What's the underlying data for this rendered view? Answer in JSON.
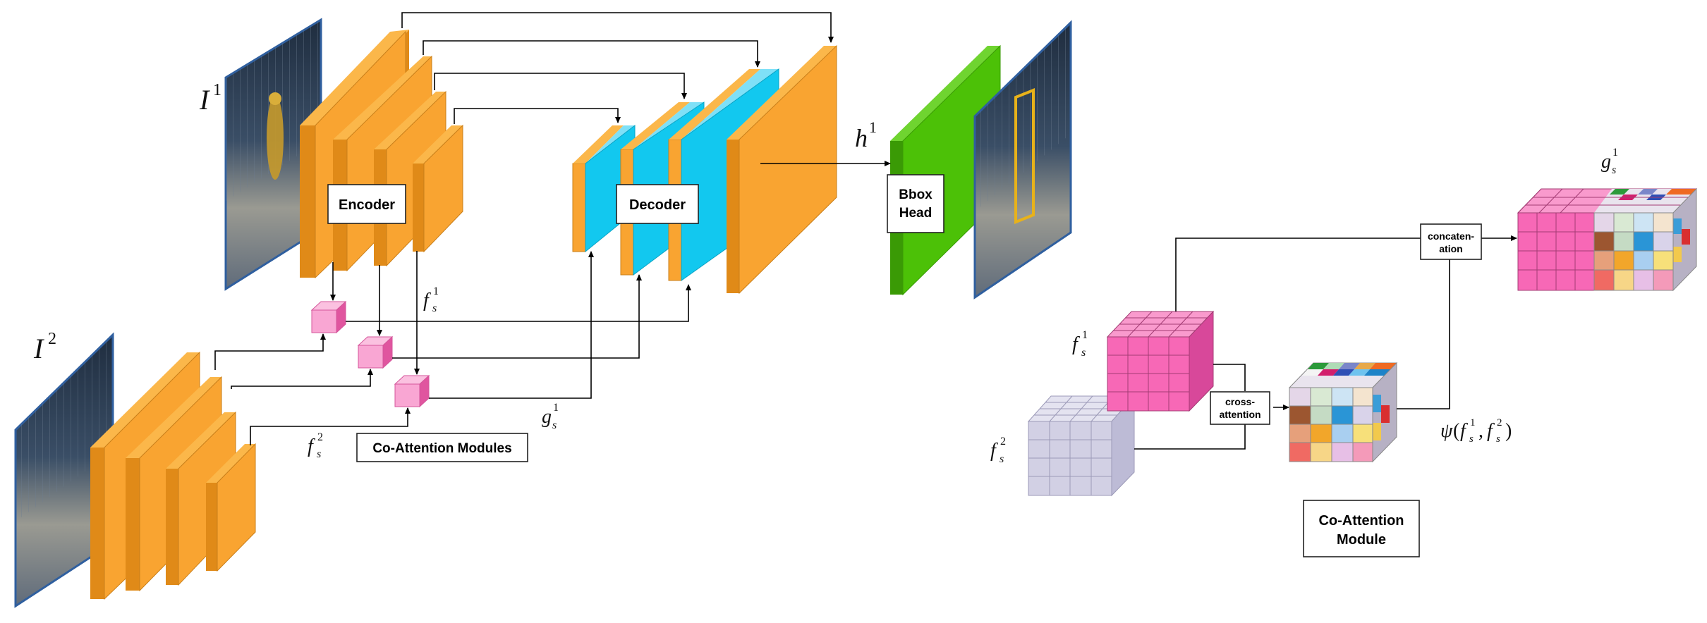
{
  "labels": {
    "encoder": "Encoder",
    "decoder": "Decoder",
    "bbox_head_line1": "Bbox",
    "bbox_head_line2": "Head",
    "co_attention_modules": "Co-Attention Modules",
    "co_attention_module_line1": "Co-Attention",
    "co_attention_module_line2": "Module",
    "cross_attention_line1": "cross-",
    "cross_attention_line2": "attention",
    "concatenation_line1": "concaten-",
    "concatenation_line2": "ation"
  },
  "math": {
    "I": "I",
    "h": "h",
    "f": "f",
    "g": "g",
    "s": "s",
    "one": "1",
    "two": "2",
    "psi": "ψ",
    "open": "(",
    "comma": ",",
    "close": ")"
  },
  "colors": {
    "orange": "#f9a431",
    "orange_side": "#e08a18",
    "blue": "#12c8ef",
    "green": "#4cc107",
    "pink": "#f768b6",
    "pink_light": "#f9a6d3",
    "lavender": "#d2d0e4",
    "photo_border": "#2f5f9f"
  }
}
